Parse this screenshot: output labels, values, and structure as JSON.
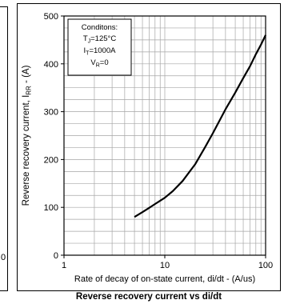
{
  "neighbor_panel": {
    "tick_fragment": "0"
  },
  "chart_data": {
    "type": "line",
    "title": "",
    "caption": "Reverse recovery current vs di/dt",
    "xlabel": "Rate of decay of on-state current, di/dt - (A/us)",
    "ylabel_main": "Reverse recovery current, I",
    "ylabel_sub": "RR",
    "ylabel_tail": " - (A)",
    "xscale": "log",
    "xlim": [
      1,
      100
    ],
    "ylim": [
      0,
      500
    ],
    "grid": true,
    "x_ticks": [
      {
        "value": 1,
        "label": "1"
      },
      {
        "value": 10,
        "label": "10"
      },
      {
        "value": 100,
        "label": "100"
      }
    ],
    "y_ticks": [
      {
        "value": 0,
        "label": "0"
      },
      {
        "value": 100,
        "label": "100"
      },
      {
        "value": 200,
        "label": "200"
      },
      {
        "value": 300,
        "label": "300"
      },
      {
        "value": 400,
        "label": "400"
      },
      {
        "value": 500,
        "label": "500"
      }
    ],
    "series": [
      {
        "x": [
          5,
          6,
          7,
          8,
          10,
          12,
          15,
          20,
          25,
          30,
          40,
          50,
          60,
          70,
          80,
          90,
          100
        ],
        "y": [
          80,
          90,
          99,
          107,
          120,
          134,
          155,
          190,
          225,
          255,
          305,
          340,
          370,
          395,
          420,
          440,
          460
        ]
      }
    ],
    "conditions": {
      "title": "Conditons:",
      "lines": [
        {
          "main": "T",
          "sub": "J",
          "rest": "=125°C"
        },
        {
          "main": "I",
          "sub": "T",
          "rest": "=1000A"
        },
        {
          "main": "V",
          "sub": "R",
          "rest": "=0"
        }
      ]
    }
  },
  "colors": {
    "curve": "#000000",
    "grid": "#a6a6a6",
    "axis": "#000000"
  }
}
